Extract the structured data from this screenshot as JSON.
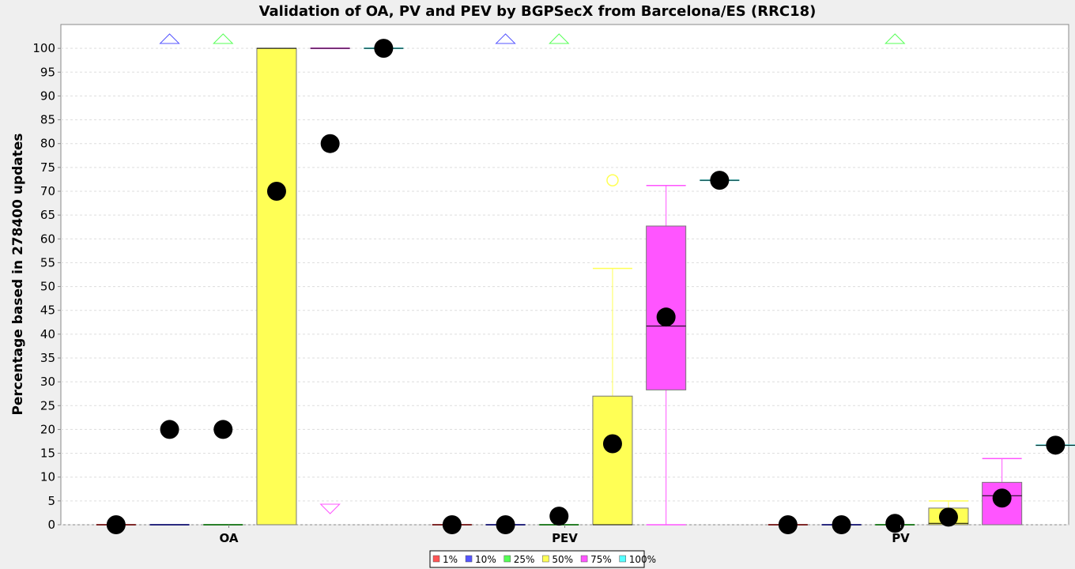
{
  "chart_data": {
    "type": "box",
    "title": "Validation of OA, PV and PEV by BGPSecX from Barcelona/ES (RRC18)",
    "ylabel": "Percentage based in 278400 updates",
    "ylim": [
      0,
      105
    ],
    "yticks": [
      0,
      5,
      10,
      15,
      20,
      25,
      30,
      35,
      40,
      45,
      50,
      55,
      60,
      65,
      70,
      75,
      80,
      85,
      90,
      95,
      100
    ],
    "grid": true,
    "legend_position": "bottom",
    "categories": [
      "OA",
      "PEV",
      "PV"
    ],
    "series": [
      {
        "name": "1%",
        "color": "#ff5555",
        "boxes": [
          {
            "q1": 0,
            "median": 0,
            "q3": 0,
            "whisker_low": 0,
            "whisker_high": 0,
            "mean": 0
          },
          {
            "q1": 0,
            "median": 0,
            "q3": 0,
            "whisker_low": 0,
            "whisker_high": 0,
            "mean": 0
          },
          {
            "q1": 0,
            "median": 0,
            "q3": 0,
            "whisker_low": 0,
            "whisker_high": 0,
            "mean": 0
          }
        ]
      },
      {
        "name": "10%",
        "color": "#5555ff",
        "boxes": [
          {
            "q1": 0,
            "median": 0,
            "q3": 0,
            "whisker_low": 0,
            "whisker_high": 0,
            "mean": 20,
            "far_out_high": true
          },
          {
            "q1": 0,
            "median": 0,
            "q3": 0,
            "whisker_low": 0,
            "whisker_high": 0,
            "mean": 0,
            "far_out_high": true
          },
          {
            "q1": 0,
            "median": 0,
            "q3": 0,
            "whisker_low": 0,
            "whisker_high": 0,
            "mean": 0
          }
        ]
      },
      {
        "name": "25%",
        "color": "#55ff55",
        "boxes": [
          {
            "q1": 0,
            "median": 0,
            "q3": 0,
            "whisker_low": 0,
            "whisker_high": 0,
            "mean": 20,
            "far_out_high": true
          },
          {
            "q1": 0,
            "median": 0,
            "q3": 0,
            "whisker_low": 0,
            "whisker_high": 0,
            "mean": 1.8,
            "far_out_high": true
          },
          {
            "q1": 0,
            "median": 0,
            "q3": 0,
            "whisker_low": 0,
            "whisker_high": 0,
            "mean": 0.3,
            "far_out_high": true
          }
        ]
      },
      {
        "name": "50%",
        "color": "#ffff55",
        "boxes": [
          {
            "q1": 0,
            "median": 100,
            "q3": 100,
            "whisker_low": 0,
            "whisker_high": 100,
            "mean": 70
          },
          {
            "q1": 0,
            "median": 0,
            "q3": 27,
            "whisker_low": 0,
            "whisker_high": 53.8,
            "mean": 17,
            "outliers": [
              72.3
            ]
          },
          {
            "q1": 0,
            "median": 0.3,
            "q3": 3.5,
            "whisker_low": 0,
            "whisker_high": 5,
            "mean": 1.6
          }
        ]
      },
      {
        "name": "75%",
        "color": "#ff55ff",
        "boxes": [
          {
            "q1": 100,
            "median": 100,
            "q3": 100,
            "whisker_low": 100,
            "whisker_high": 100,
            "mean": 80,
            "far_out_low": true
          },
          {
            "q1": 28.3,
            "median": 41.7,
            "q3": 62.7,
            "whisker_low": 0,
            "whisker_high": 71.2,
            "mean": 43.6
          },
          {
            "q1": 0,
            "median": 6.1,
            "q3": 8.9,
            "whisker_low": 0,
            "whisker_high": 13.9,
            "mean": 5.6
          }
        ]
      },
      {
        "name": "100%",
        "color": "#55ffff",
        "boxes": [
          {
            "q1": 100,
            "median": 100,
            "q3": 100,
            "whisker_low": 100,
            "whisker_high": 100,
            "mean": 100
          },
          {
            "q1": 72.3,
            "median": 72.3,
            "q3": 72.3,
            "whisker_low": 72.3,
            "whisker_high": 72.3,
            "mean": 72.3
          },
          {
            "q1": 16.7,
            "median": 16.7,
            "q3": 16.7,
            "whisker_low": 16.7,
            "whisker_high": 16.7,
            "mean": 16.7
          }
        ]
      }
    ]
  }
}
